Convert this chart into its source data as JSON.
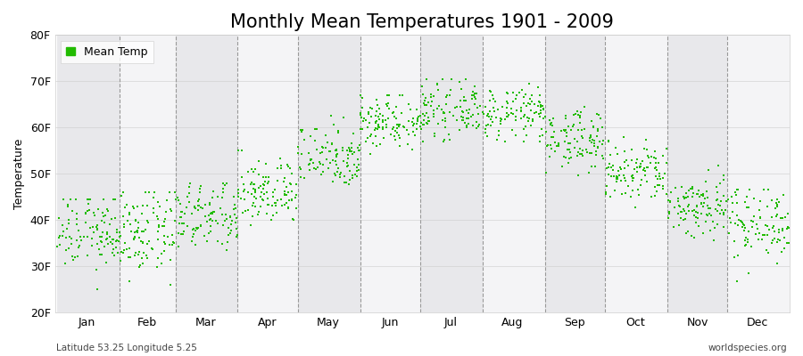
{
  "title": "Monthly Mean Temperatures 1901 - 2009",
  "ylabel": "Temperature",
  "xlabel_months": [
    "Jan",
    "Feb",
    "Mar",
    "Apr",
    "May",
    "Jun",
    "Jul",
    "Aug",
    "Sep",
    "Oct",
    "Nov",
    "Dec"
  ],
  "yticks": [
    20,
    30,
    40,
    50,
    60,
    70,
    80
  ],
  "ytick_labels": [
    "20F",
    "30F",
    "40F",
    "50F",
    "60F",
    "70F",
    "80F"
  ],
  "ylim": [
    20,
    80
  ],
  "xlim": [
    0,
    366
  ],
  "footer_left": "Latitude 53.25 Longitude 5.25",
  "footer_right": "worldspecies.org",
  "dot_color": "#22bb00",
  "band_colors": [
    "#e8e8eb",
    "#f4f4f6"
  ],
  "legend_label": "Mean Temp",
  "title_fontsize": 15,
  "n_years": 109,
  "month_start_days": [
    1,
    32,
    60,
    91,
    121,
    152,
    182,
    213,
    244,
    274,
    305,
    335
  ],
  "month_mid_days": [
    16,
    46,
    75,
    106,
    136,
    167,
    197,
    228,
    259,
    289,
    320,
    350
  ],
  "month_end_days": [
    31,
    59,
    90,
    120,
    151,
    181,
    212,
    243,
    273,
    304,
    334,
    365
  ],
  "monthly_means_f": [
    37.5,
    37.0,
    40.5,
    46.0,
    54.0,
    61.5,
    63.5,
    63.0,
    57.5,
    50.0,
    43.0,
    39.5
  ],
  "monthly_stds_f": [
    4.2,
    4.5,
    3.8,
    3.5,
    3.5,
    3.0,
    2.8,
    2.8,
    3.2,
    3.5,
    3.5,
    4.0
  ],
  "monthly_mins_f": [
    22.0,
    22.0,
    30.0,
    36.0,
    45.0,
    51.0,
    57.0,
    57.0,
    49.0,
    42.0,
    33.0,
    25.0
  ],
  "monthly_maxs_f": [
    44.5,
    46.0,
    48.0,
    55.0,
    63.0,
    67.0,
    70.5,
    69.5,
    64.5,
    59.5,
    53.0,
    46.5
  ]
}
